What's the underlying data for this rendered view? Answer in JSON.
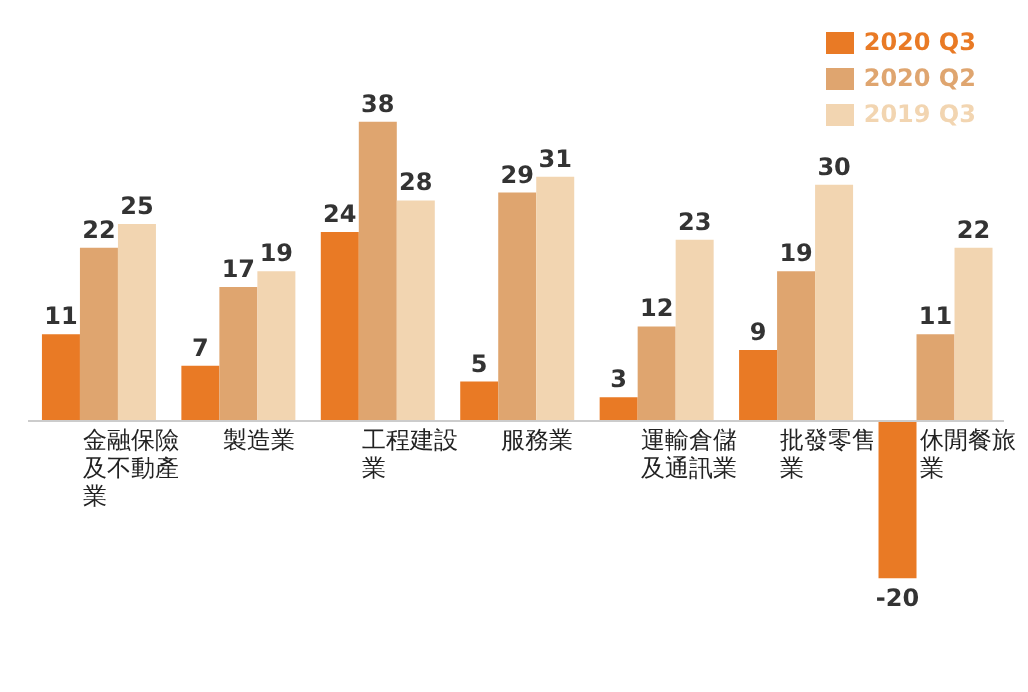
{
  "chart_data": {
    "type": "bar",
    "categories": [
      "金融保險及不動產業",
      "製造業",
      "工程建設業",
      "服務業",
      "運輸倉儲及通訊業",
      "批發零售業",
      "休閒餐旅業"
    ],
    "series": [
      {
        "name": "2020 Q3",
        "color": "#e97a25",
        "values": [
          11,
          7,
          24,
          5,
          3,
          9,
          -20
        ]
      },
      {
        "name": "2020 Q2",
        "color": "#dfa56f",
        "values": [
          22,
          17,
          38,
          29,
          12,
          19,
          11
        ]
      },
      {
        "name": "2019 Q3",
        "color": "#f2d5b1",
        "values": [
          25,
          19,
          28,
          31,
          23,
          30,
          22
        ]
      }
    ],
    "data_labels": true,
    "legend": "top right",
    "grid": false
  }
}
